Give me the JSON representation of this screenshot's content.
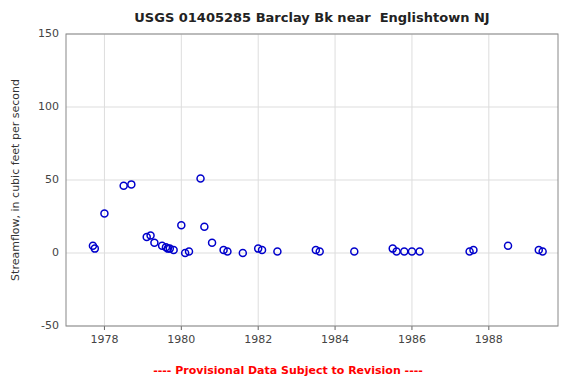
{
  "chart_data": {
    "type": "scatter",
    "title": "USGS 01405285 Barclay Bk near  Englishtown NJ",
    "ylabel": "Streamflow, in cubic feet per second",
    "footnote": "---- Provisional Data Subject to Revision ----",
    "x": [
      1977.7,
      1977.75,
      1978.0,
      1978.5,
      1978.7,
      1979.1,
      1979.2,
      1979.3,
      1979.5,
      1979.6,
      1979.65,
      1979.7,
      1979.8,
      1980.0,
      1980.1,
      1980.2,
      1980.5,
      1980.6,
      1980.8,
      1981.1,
      1981.2,
      1981.6,
      1982.0,
      1982.1,
      1982.5,
      1983.5,
      1983.6,
      1984.5,
      1985.5,
      1985.6,
      1985.8,
      1986.0,
      1986.2,
      1987.5,
      1987.6,
      1988.5,
      1989.3,
      1989.4
    ],
    "values": [
      5,
      3,
      27,
      46,
      47,
      11,
      12,
      7,
      5,
      4,
      3,
      3,
      2,
      19,
      0,
      1,
      51,
      18,
      7,
      2,
      1,
      0,
      3,
      2,
      1,
      2,
      1,
      1,
      3,
      1,
      1,
      1,
      1,
      1,
      2,
      5,
      2,
      1
    ],
    "xlim": [
      1977.0,
      1989.8
    ],
    "ylim": [
      -50,
      150
    ],
    "xticks": [
      1978,
      1980,
      1982,
      1984,
      1986,
      1988
    ],
    "yticks": [
      -50,
      0,
      50,
      100,
      150
    ],
    "grid": true,
    "color": "#0000CC",
    "marker": "circle"
  }
}
